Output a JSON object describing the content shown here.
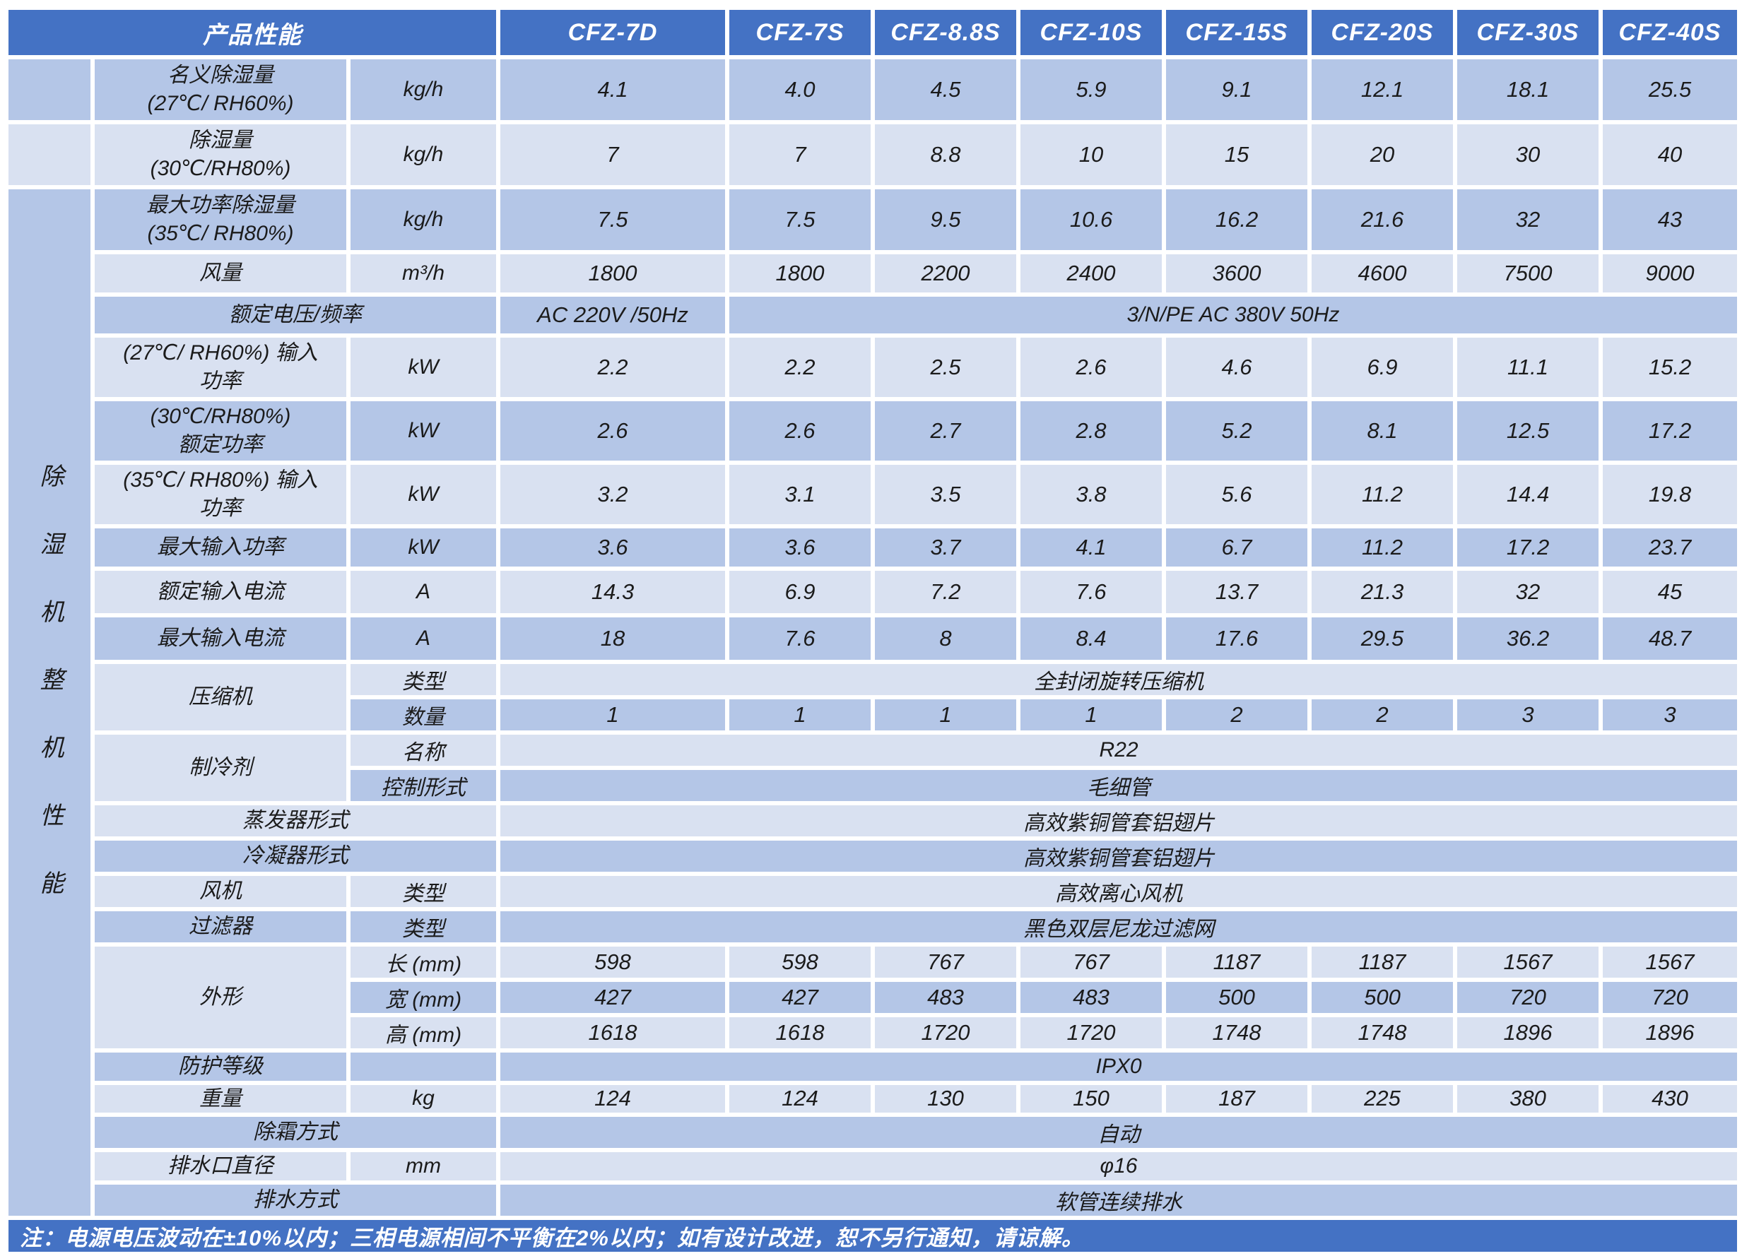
{
  "colors": {
    "header_bg": "#4472C4",
    "row_medium": "#B4C6E7",
    "row_light": "#D9E1F1",
    "note_bg": "#4472C4",
    "text_dark": "#1B1B1B",
    "text_white": "#FFFFFF"
  },
  "sidebar": {
    "vertical_label": "除湿机整机性能"
  },
  "header": {
    "title": "产品性能",
    "models": [
      "CFZ-7D",
      "CFZ-7S",
      "CFZ-8.8S",
      "CFZ-10S",
      "CFZ-15S",
      "CFZ-20S",
      "CFZ-30S",
      "CFZ-40S"
    ]
  },
  "note": {
    "text": "注：电源电压波动在±10%以内；三相电源相间不平衡在2%以内；如有设计改进，恕不另行通知，请谅解。"
  },
  "table": {
    "rows": [
      {
        "cells": [
          {
            "text": "产品性能",
            "kind": "title",
            "colspan": 3
          },
          {
            "text": "CFZ-7D",
            "kind": "model"
          },
          {
            "text": "CFZ-7S",
            "kind": "model"
          },
          {
            "text": "CFZ-8.8S",
            "kind": "model"
          },
          {
            "text": "CFZ-10S",
            "kind": "model"
          },
          {
            "text": "CFZ-15S",
            "kind": "model"
          },
          {
            "text": "CFZ-20S",
            "kind": "model"
          },
          {
            "text": "CFZ-30S",
            "kind": "model"
          },
          {
            "text": "CFZ-40S",
            "kind": "model"
          }
        ]
      },
      {
        "cells": [
          {
            "text": "",
            "kind": "side"
          },
          {
            "text": "名义除湿量\n(27℃/ RH60%)",
            "kind": "label"
          },
          {
            "text": "kg/h",
            "kind": "unit"
          },
          {
            "text": "4.1",
            "kind": "value"
          },
          {
            "text": "4.0",
            "kind": "value"
          },
          {
            "text": "4.5",
            "kind": "value"
          },
          {
            "text": "5.9",
            "kind": "value"
          },
          {
            "text": "9.1",
            "kind": "value"
          },
          {
            "text": "12.1",
            "kind": "value"
          },
          {
            "text": "18.1",
            "kind": "value"
          },
          {
            "text": "25.5",
            "kind": "value"
          }
        ]
      },
      {
        "cells": [
          {
            "text": "",
            "kind": "side"
          },
          {
            "text": "除湿量\n(30℃/RH80%)",
            "kind": "label"
          },
          {
            "text": "kg/h",
            "kind": "unit"
          },
          {
            "text": "7",
            "kind": "value"
          },
          {
            "text": "7",
            "kind": "value"
          },
          {
            "text": "8.8",
            "kind": "value"
          },
          {
            "text": "10",
            "kind": "value"
          },
          {
            "text": "15",
            "kind": "value"
          },
          {
            "text": "20",
            "kind": "value"
          },
          {
            "text": "30",
            "kind": "value"
          },
          {
            "text": "40",
            "kind": "value"
          }
        ]
      },
      {
        "cells": [
          {
            "text": "除湿机整机性能",
            "kind": "side-merged",
            "rowspan": 25
          },
          {
            "text": "最大功率除湿量\n(35℃/ RH80%)",
            "kind": "label"
          },
          {
            "text": "kg/h",
            "kind": "unit"
          },
          {
            "text": "7.5",
            "kind": "value"
          },
          {
            "text": "7.5",
            "kind": "value"
          },
          {
            "text": "9.5",
            "kind": "value"
          },
          {
            "text": "10.6",
            "kind": "value"
          },
          {
            "text": "16.2",
            "kind": "value"
          },
          {
            "text": "21.6",
            "kind": "value"
          },
          {
            "text": "32",
            "kind": "value"
          },
          {
            "text": "43",
            "kind": "value"
          }
        ]
      },
      {
        "cells": [
          {
            "text": "风量",
            "kind": "label"
          },
          {
            "text": "m³/h",
            "kind": "unit"
          },
          {
            "text": "1800",
            "kind": "value"
          },
          {
            "text": "1800",
            "kind": "value"
          },
          {
            "text": "2200",
            "kind": "value"
          },
          {
            "text": "2400",
            "kind": "value"
          },
          {
            "text": "3600",
            "kind": "value"
          },
          {
            "text": "4600",
            "kind": "value"
          },
          {
            "text": "7500",
            "kind": "value"
          },
          {
            "text": "9000",
            "kind": "value"
          }
        ]
      },
      {
        "cells": [
          {
            "text": "额定电压/频率",
            "kind": "label",
            "colspan": 2
          },
          {
            "text": "AC 220V /50Hz",
            "kind": "value"
          },
          {
            "text": "3/N/PE AC 380V 50Hz",
            "kind": "span",
            "colspan": 7
          }
        ]
      },
      {
        "cells": [
          {
            "text": "(27℃/ RH60%) 输入\n功率",
            "kind": "label"
          },
          {
            "text": "kW",
            "kind": "unit"
          },
          {
            "text": "2.2",
            "kind": "value"
          },
          {
            "text": "2.2",
            "kind": "value"
          },
          {
            "text": "2.5",
            "kind": "value"
          },
          {
            "text": "2.6",
            "kind": "value"
          },
          {
            "text": "4.6",
            "kind": "value"
          },
          {
            "text": "6.9",
            "kind": "value"
          },
          {
            "text": "11.1",
            "kind": "value"
          },
          {
            "text": "15.2",
            "kind": "value"
          }
        ]
      },
      {
        "cells": [
          {
            "text": "(30℃/RH80%)\n额定功率",
            "kind": "label"
          },
          {
            "text": "kW",
            "kind": "unit"
          },
          {
            "text": "2.6",
            "kind": "value"
          },
          {
            "text": "2.6",
            "kind": "value"
          },
          {
            "text": "2.7",
            "kind": "value"
          },
          {
            "text": "2.8",
            "kind": "value"
          },
          {
            "text": "5.2",
            "kind": "value"
          },
          {
            "text": "8.1",
            "kind": "value"
          },
          {
            "text": "12.5",
            "kind": "value"
          },
          {
            "text": "17.2",
            "kind": "value"
          }
        ]
      },
      {
        "cells": [
          {
            "text": "(35℃/ RH80%) 输入\n功率",
            "kind": "label"
          },
          {
            "text": "kW",
            "kind": "unit"
          },
          {
            "text": "3.2",
            "kind": "value"
          },
          {
            "text": "3.1",
            "kind": "value"
          },
          {
            "text": "3.5",
            "kind": "value"
          },
          {
            "text": "3.8",
            "kind": "value"
          },
          {
            "text": "5.6",
            "kind": "value"
          },
          {
            "text": "11.2",
            "kind": "value"
          },
          {
            "text": "14.4",
            "kind": "value"
          },
          {
            "text": "19.8",
            "kind": "value"
          }
        ]
      },
      {
        "cells": [
          {
            "text": "最大输入功率",
            "kind": "label"
          },
          {
            "text": "kW",
            "kind": "unit"
          },
          {
            "text": "3.6",
            "kind": "value"
          },
          {
            "text": "3.6",
            "kind": "value"
          },
          {
            "text": "3.7",
            "kind": "value"
          },
          {
            "text": "4.1",
            "kind": "value"
          },
          {
            "text": "6.7",
            "kind": "value"
          },
          {
            "text": "11.2",
            "kind": "value"
          },
          {
            "text": "17.2",
            "kind": "value"
          },
          {
            "text": "23.7",
            "kind": "value"
          }
        ]
      },
      {
        "cells": [
          {
            "text": "额定输入电流",
            "kind": "label"
          },
          {
            "text": "A",
            "kind": "unit"
          },
          {
            "text": "14.3",
            "kind": "value"
          },
          {
            "text": "6.9",
            "kind": "value"
          },
          {
            "text": "7.2",
            "kind": "value"
          },
          {
            "text": "7.6",
            "kind": "value"
          },
          {
            "text": "13.7",
            "kind": "value"
          },
          {
            "text": "21.3",
            "kind": "value"
          },
          {
            "text": "32",
            "kind": "value"
          },
          {
            "text": "45",
            "kind": "value"
          }
        ]
      },
      {
        "cells": [
          {
            "text": "最大输入电流",
            "kind": "label"
          },
          {
            "text": "A",
            "kind": "unit"
          },
          {
            "text": "18",
            "kind": "value"
          },
          {
            "text": "7.6",
            "kind": "value"
          },
          {
            "text": "8",
            "kind": "value"
          },
          {
            "text": "8.4",
            "kind": "value"
          },
          {
            "text": "17.6",
            "kind": "value"
          },
          {
            "text": "29.5",
            "kind": "value"
          },
          {
            "text": "36.2",
            "kind": "value"
          },
          {
            "text": "48.7",
            "kind": "value"
          }
        ]
      },
      {
        "cells": [
          {
            "text": "压缩机",
            "kind": "label",
            "rowspan": 2
          },
          {
            "text": "类型",
            "kind": "unit"
          },
          {
            "text": "全封闭旋转压缩机",
            "kind": "span",
            "colspan": 8
          }
        ]
      },
      {
        "cells": [
          {
            "text": "数量",
            "kind": "unit"
          },
          {
            "text": "1",
            "kind": "value"
          },
          {
            "text": "1",
            "kind": "value"
          },
          {
            "text": "1",
            "kind": "value"
          },
          {
            "text": "1",
            "kind": "value"
          },
          {
            "text": "2",
            "kind": "value"
          },
          {
            "text": "2",
            "kind": "value"
          },
          {
            "text": "3",
            "kind": "value"
          },
          {
            "text": "3",
            "kind": "value"
          }
        ]
      },
      {
        "cells": [
          {
            "text": "制冷剂",
            "kind": "label",
            "rowspan": 2
          },
          {
            "text": "名称",
            "kind": "unit"
          },
          {
            "text": "R22",
            "kind": "span",
            "colspan": 8
          }
        ]
      },
      {
        "cells": [
          {
            "text": "控制形式",
            "kind": "unit"
          },
          {
            "text": "毛细管",
            "kind": "span",
            "colspan": 8
          }
        ]
      },
      {
        "cells": [
          {
            "text": "蒸发器形式",
            "kind": "label",
            "colspan": 2
          },
          {
            "text": "高效紫铜管套铝翅片",
            "kind": "span",
            "colspan": 8
          }
        ]
      },
      {
        "cells": [
          {
            "text": "冷凝器形式",
            "kind": "label",
            "colspan": 2
          },
          {
            "text": "高效紫铜管套铝翅片",
            "kind": "span",
            "colspan": 8
          }
        ]
      },
      {
        "cells": [
          {
            "text": "风机",
            "kind": "label"
          },
          {
            "text": "类型",
            "kind": "unit"
          },
          {
            "text": "高效离心风机",
            "kind": "span",
            "colspan": 8
          }
        ]
      },
      {
        "cells": [
          {
            "text": "过滤器",
            "kind": "label"
          },
          {
            "text": "类型",
            "kind": "unit"
          },
          {
            "text": "黑色双层尼龙过滤网",
            "kind": "span",
            "colspan": 8
          }
        ]
      },
      {
        "cells": [
          {
            "text": "外形",
            "kind": "label",
            "rowspan": 3
          },
          {
            "text": "长 (mm)",
            "kind": "unit"
          },
          {
            "text": "598",
            "kind": "value"
          },
          {
            "text": "598",
            "kind": "value"
          },
          {
            "text": "767",
            "kind": "value"
          },
          {
            "text": "767",
            "kind": "value"
          },
          {
            "text": "1187",
            "kind": "value"
          },
          {
            "text": "1187",
            "kind": "value"
          },
          {
            "text": "1567",
            "kind": "value"
          },
          {
            "text": "1567",
            "kind": "value"
          }
        ]
      },
      {
        "cells": [
          {
            "text": "宽 (mm)",
            "kind": "unit"
          },
          {
            "text": "427",
            "kind": "value"
          },
          {
            "text": "427",
            "kind": "value"
          },
          {
            "text": "483",
            "kind": "value"
          },
          {
            "text": "483",
            "kind": "value"
          },
          {
            "text": "500",
            "kind": "value"
          },
          {
            "text": "500",
            "kind": "value"
          },
          {
            "text": "720",
            "kind": "value"
          },
          {
            "text": "720",
            "kind": "value"
          }
        ]
      },
      {
        "cells": [
          {
            "text": "高 (mm)",
            "kind": "unit"
          },
          {
            "text": "1618",
            "kind": "value"
          },
          {
            "text": "1618",
            "kind": "value"
          },
          {
            "text": "1720",
            "kind": "value"
          },
          {
            "text": "1720",
            "kind": "value"
          },
          {
            "text": "1748",
            "kind": "value"
          },
          {
            "text": "1748",
            "kind": "value"
          },
          {
            "text": "1896",
            "kind": "value"
          },
          {
            "text": "1896",
            "kind": "value"
          }
        ]
      },
      {
        "cells": [
          {
            "text": "防护等级",
            "kind": "label"
          },
          {
            "text": "",
            "kind": "unit"
          },
          {
            "text": "IPX0",
            "kind": "span",
            "colspan": 8
          }
        ]
      },
      {
        "cells": [
          {
            "text": "重量",
            "kind": "label"
          },
          {
            "text": "kg",
            "kind": "unit"
          },
          {
            "text": "124",
            "kind": "value"
          },
          {
            "text": "124",
            "kind": "value"
          },
          {
            "text": "130",
            "kind": "value"
          },
          {
            "text": "150",
            "kind": "value"
          },
          {
            "text": "187",
            "kind": "value"
          },
          {
            "text": "225",
            "kind": "value"
          },
          {
            "text": "380",
            "kind": "value"
          },
          {
            "text": "430",
            "kind": "value"
          }
        ]
      },
      {
        "cells": [
          {
            "text": "除霜方式",
            "kind": "label",
            "colspan": 2
          },
          {
            "text": "自动",
            "kind": "span",
            "colspan": 8
          }
        ]
      },
      {
        "cells": [
          {
            "text": "排水口直径",
            "kind": "label"
          },
          {
            "text": "mm",
            "kind": "unit"
          },
          {
            "text": "φ16",
            "kind": "span",
            "colspan": 8
          }
        ]
      },
      {
        "cells": [
          {
            "text": "排水方式",
            "kind": "label",
            "colspan": 2
          },
          {
            "text": "软管连续排水",
            "kind": "span",
            "colspan": 8
          }
        ]
      },
      {
        "cells": [
          {
            "text": "注：电源电压波动在±10%以内；三相电源相间不平衡在2%以内；如有设计改进，恕不另行通知，请谅解。",
            "kind": "note",
            "colspan": 11
          }
        ]
      }
    ]
  }
}
